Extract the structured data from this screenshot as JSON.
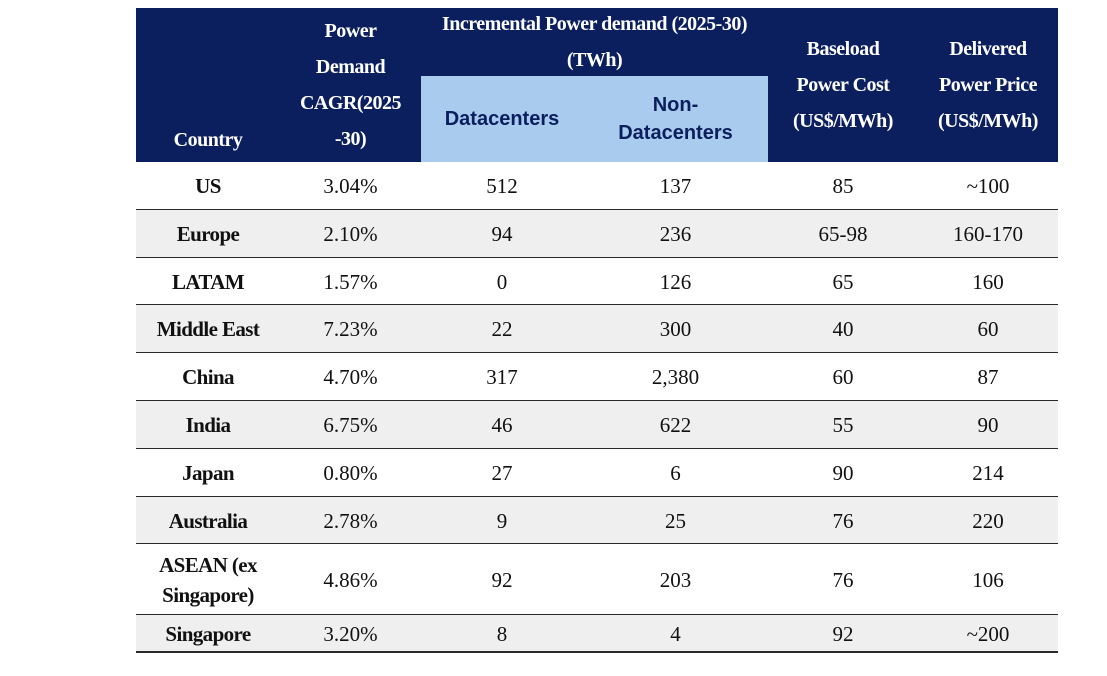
{
  "header": {
    "country": "Country",
    "cagr": "Power Demand CAGR(2025-30)",
    "incremental": "Incremental Power demand (2025-30) (TWh)",
    "datacenters": "Datacenters",
    "non_datacenters": "Non-Datacenters",
    "baseload": "Baseload Power Cost (US$/MWh)",
    "delivered": "Delivered Power Price (US$/MWh)"
  },
  "table": {
    "rows": [
      [
        "US",
        "3.04%",
        "512",
        "137",
        "85",
        "~100"
      ],
      [
        "Europe",
        "2.10%",
        "94",
        "236",
        "65-98",
        "160-170"
      ],
      [
        "LATAM",
        "1.57%",
        "0",
        "126",
        "65",
        "160"
      ],
      [
        "Middle East",
        "7.23%",
        "22",
        "300",
        "40",
        "60"
      ],
      [
        "China",
        "4.70%",
        "317",
        "2,380",
        "60",
        "87"
      ],
      [
        "India",
        "6.75%",
        "46",
        "622",
        "55",
        "90"
      ],
      [
        "Japan",
        "0.80%",
        "27",
        "6",
        "90",
        "214"
      ],
      [
        "Australia",
        "2.78%",
        "9",
        "25",
        "76",
        "220"
      ],
      [
        "ASEAN (ex Singapore)",
        "4.86%",
        "92",
        "203",
        "76",
        "106"
      ],
      [
        "Singapore",
        "3.20%",
        "8",
        "4",
        "92",
        "~200"
      ]
    ]
  }
}
